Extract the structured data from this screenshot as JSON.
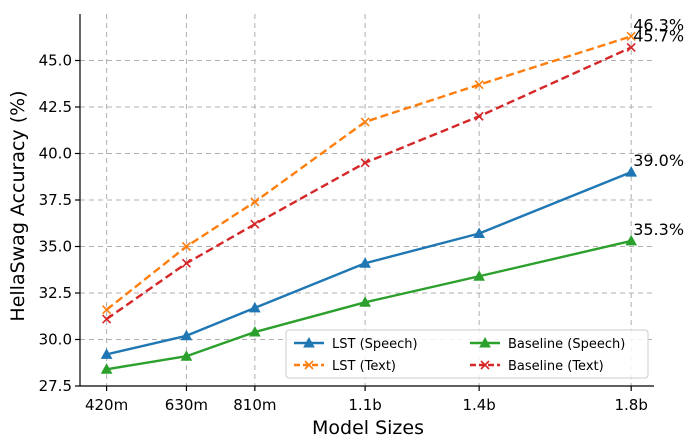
{
  "chart_data": {
    "type": "line",
    "title": "",
    "xlabel": "Model Sizes",
    "ylabel": "HellaSwag Accuracy (%)",
    "x_labels": [
      "420m",
      "630m",
      "810m",
      "1.1b",
      "1.4b",
      "1.8b"
    ],
    "x": [
      0.42,
      0.63,
      0.81,
      1.1,
      1.4,
      1.8
    ],
    "xlim": [
      0.35,
      1.86
    ],
    "ylim": [
      27.5,
      47.5
    ],
    "yticks": [
      27.5,
      30.0,
      32.5,
      35.0,
      37.5,
      40.0,
      42.5,
      45.0
    ],
    "ytick_labels": [
      "27.5",
      "30.0",
      "32.5",
      "35.0",
      "37.5",
      "40.0",
      "42.5",
      "45.0"
    ],
    "grid": true,
    "legend_position": "bottom-right",
    "series": [
      {
        "name": "LST (Speech)",
        "values": [
          29.2,
          30.2,
          31.7,
          34.1,
          35.7,
          39.0
        ],
        "color": "#1f77b4",
        "marker": "triangle",
        "dashed": false,
        "end_label": "39.0%"
      },
      {
        "name": "LST (Text)",
        "values": [
          31.6,
          35.0,
          37.4,
          41.7,
          43.7,
          46.3
        ],
        "color": "#ff7f0e",
        "marker": "x",
        "dashed": true,
        "end_label": "46.3%"
      },
      {
        "name": "Baseline (Speech)",
        "values": [
          28.4,
          29.1,
          30.4,
          32.0,
          33.4,
          35.3
        ],
        "color": "#2ca02c",
        "marker": "triangle",
        "dashed": false,
        "end_label": "35.3%"
      },
      {
        "name": "Baseline (Text)",
        "values": [
          31.1,
          34.1,
          36.2,
          39.5,
          42.0,
          45.7
        ],
        "color": "#d62728",
        "marker": "x",
        "dashed": true,
        "end_label": "45.7%"
      }
    ]
  }
}
